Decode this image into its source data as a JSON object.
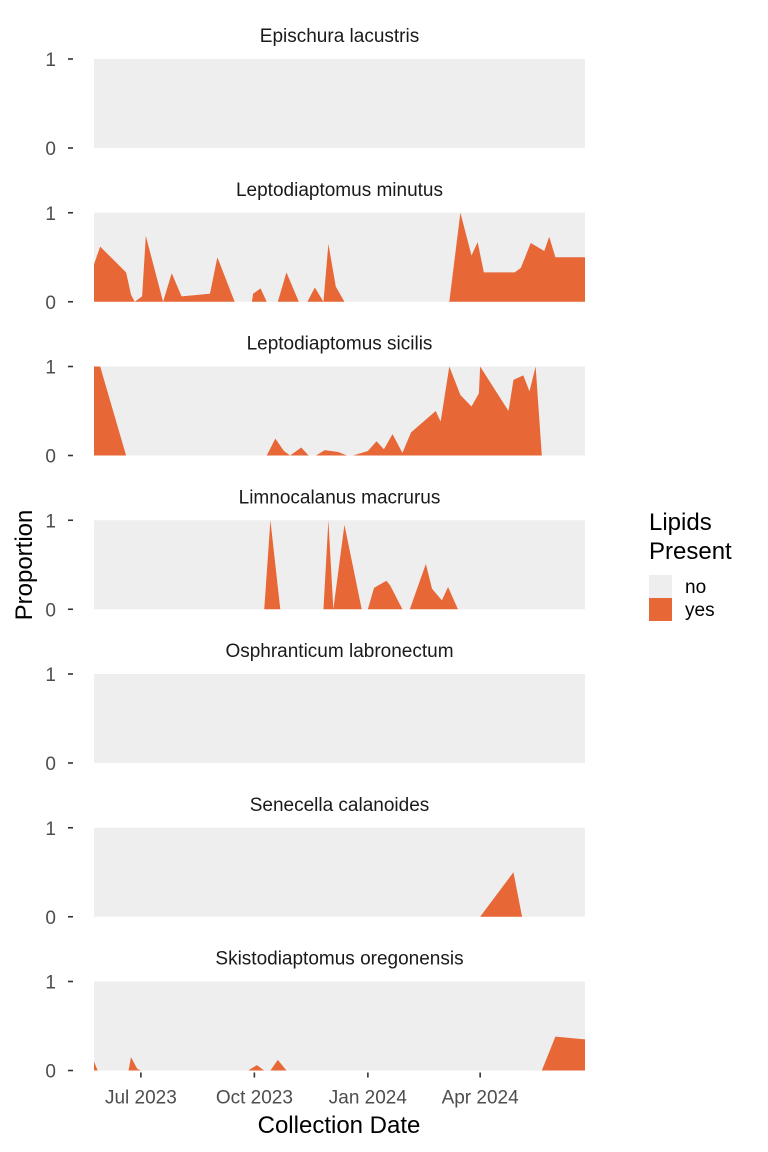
{
  "chart_data": {
    "type": "area",
    "xlabel": "Collection Date",
    "ylabel": "Proportion",
    "ylim": [
      0,
      1
    ],
    "xlim": [
      "2023-05-24",
      "2024-06-25"
    ],
    "x_ticks": [
      {
        "date": "2023-07-01",
        "label": "Jul 2023"
      },
      {
        "date": "2023-10-01",
        "label": "Oct 2023"
      },
      {
        "date": "2024-01-01",
        "label": "Jan 2024"
      },
      {
        "date": "2024-04-01",
        "label": "Apr 2024"
      }
    ],
    "y_ticks": [
      {
        "value": 0,
        "label": "0"
      },
      {
        "value": 1,
        "label": "1"
      }
    ],
    "legend": {
      "title": "Lipids\nPresent",
      "title_lines": [
        "Lipids",
        "Present"
      ],
      "placement": "right",
      "entries": [
        {
          "label": "no",
          "color": "#eeeeee"
        },
        {
          "label": "yes",
          "color": "#e76737"
        }
      ]
    },
    "facets": [
      {
        "title": "Epischura lacustris",
        "points": []
      },
      {
        "title": "Leptodiaptomus minutus",
        "points": [
          [
            "2023-05-24",
            0.42
          ],
          [
            "2023-05-29",
            0.62
          ],
          [
            "2023-06-19",
            0.33
          ],
          [
            "2023-06-23",
            0.08
          ],
          [
            "2023-06-26",
            0.0
          ],
          [
            "2023-07-02",
            0.06
          ],
          [
            "2023-07-05",
            0.74
          ],
          [
            "2023-07-19",
            0.0
          ],
          [
            "2023-07-26",
            0.32
          ],
          [
            "2023-08-03",
            0.06
          ],
          [
            "2023-08-26",
            0.09
          ],
          [
            "2023-09-01",
            0.5
          ],
          [
            "2023-09-15",
            0.0
          ],
          [
            "2023-09-29",
            0.0
          ],
          [
            "2023-09-30",
            0.09
          ],
          [
            "2023-10-06",
            0.15
          ],
          [
            "2023-10-11",
            0.0
          ],
          [
            "2023-10-20",
            0.0
          ],
          [
            "2023-10-27",
            0.33
          ],
          [
            "2023-11-06",
            0.0
          ],
          [
            "2023-11-13",
            0.0
          ],
          [
            "2023-11-19",
            0.16
          ],
          [
            "2023-11-26",
            0.0
          ],
          [
            "2023-11-30",
            0.65
          ],
          [
            "2023-12-06",
            0.17
          ],
          [
            "2023-12-13",
            0.0
          ],
          [
            "2023-12-14",
            0.0
          ],
          [
            "2024-03-07",
            0.0
          ],
          [
            "2024-03-16",
            1.0
          ],
          [
            "2024-03-25",
            0.52
          ],
          [
            "2024-03-30",
            0.67
          ],
          [
            "2024-04-04",
            0.33
          ],
          [
            "2024-04-24",
            0.33
          ],
          [
            "2024-04-29",
            0.33
          ],
          [
            "2024-05-04",
            0.38
          ],
          [
            "2024-05-12",
            0.66
          ],
          [
            "2024-05-23",
            0.57
          ],
          [
            "2024-05-27",
            0.73
          ],
          [
            "2024-06-01",
            0.5
          ],
          [
            "2024-06-25",
            0.5
          ]
        ]
      },
      {
        "title": "Leptodiaptomus sicilis",
        "points": [
          [
            "2023-05-24",
            1.0
          ],
          [
            "2023-05-29",
            1.0
          ],
          [
            "2023-06-19",
            0.0
          ],
          [
            "2023-06-25",
            0.0
          ],
          [
            "2023-10-11",
            0.0
          ],
          [
            "2023-10-18",
            0.19
          ],
          [
            "2023-10-25",
            0.05
          ],
          [
            "2023-10-30",
            0.0
          ],
          [
            "2023-11-08",
            0.09
          ],
          [
            "2023-11-14",
            0.0
          ],
          [
            "2023-11-20",
            0.0
          ],
          [
            "2023-11-27",
            0.06
          ],
          [
            "2023-12-08",
            0.04
          ],
          [
            "2023-12-15",
            0.0
          ],
          [
            "2023-12-20",
            0.0
          ],
          [
            "2024-01-01",
            0.05
          ],
          [
            "2024-01-08",
            0.16
          ],
          [
            "2024-01-14",
            0.07
          ],
          [
            "2024-01-21",
            0.24
          ],
          [
            "2024-01-29",
            0.03
          ],
          [
            "2024-02-05",
            0.26
          ],
          [
            "2024-02-25",
            0.5
          ],
          [
            "2024-02-29",
            0.38
          ],
          [
            "2024-03-07",
            1.0
          ],
          [
            "2024-03-16",
            0.68
          ],
          [
            "2024-03-25",
            0.55
          ],
          [
            "2024-03-31",
            0.7
          ],
          [
            "2024-04-01",
            1.0
          ],
          [
            "2024-04-24",
            0.5
          ],
          [
            "2024-04-28",
            0.85
          ],
          [
            "2024-05-06",
            0.9
          ],
          [
            "2024-05-11",
            0.72
          ],
          [
            "2024-05-16",
            1.0
          ],
          [
            "2024-05-21",
            0.0
          ],
          [
            "2024-06-25",
            0.0
          ]
        ]
      },
      {
        "title": "Limnocalanus macrurus",
        "points": [
          [
            "2023-10-09",
            0.0
          ],
          [
            "2023-10-14",
            1.0
          ],
          [
            "2023-10-22",
            0.0
          ],
          [
            "2023-11-26",
            0.0
          ],
          [
            "2023-11-30",
            1.0
          ],
          [
            "2023-12-04",
            0.0
          ],
          [
            "2023-12-13",
            0.95
          ],
          [
            "2023-12-27",
            0.0
          ],
          [
            "2024-01-01",
            0.0
          ],
          [
            "2024-01-06",
            0.24
          ],
          [
            "2024-01-16",
            0.32
          ],
          [
            "2024-01-19",
            0.27
          ],
          [
            "2024-01-29",
            0.0
          ],
          [
            "2024-02-04",
            0.0
          ],
          [
            "2024-02-17",
            0.51
          ],
          [
            "2024-02-22",
            0.23
          ],
          [
            "2024-03-01",
            0.1
          ],
          [
            "2024-03-06",
            0.25
          ],
          [
            "2024-03-14",
            0.0
          ],
          [
            "2024-06-25",
            0.0
          ]
        ]
      },
      {
        "title": "Osphranticum labronectum",
        "points": []
      },
      {
        "title": "Senecella calanoides",
        "points": [
          [
            "2024-04-01",
            0.0
          ],
          [
            "2024-04-28",
            0.5
          ],
          [
            "2024-05-05",
            0.0
          ],
          [
            "2024-06-25",
            0.0
          ]
        ]
      },
      {
        "title": "Skistodiaptomus oregonensis",
        "points": [
          [
            "2023-05-24",
            0.1
          ],
          [
            "2023-05-27",
            0.0
          ],
          [
            "2023-06-21",
            0.0
          ],
          [
            "2023-06-23",
            0.15
          ],
          [
            "2023-06-28",
            0.02
          ],
          [
            "2023-07-01",
            0.0
          ],
          [
            "2023-09-26",
            0.0
          ],
          [
            "2023-10-03",
            0.06
          ],
          [
            "2023-10-09",
            0.0
          ],
          [
            "2023-10-14",
            0.0
          ],
          [
            "2023-10-20",
            0.12
          ],
          [
            "2023-10-27",
            0.0
          ],
          [
            "2024-05-21",
            0.0
          ],
          [
            "2024-06-01",
            0.38
          ],
          [
            "2024-06-25",
            0.35
          ]
        ]
      }
    ]
  }
}
